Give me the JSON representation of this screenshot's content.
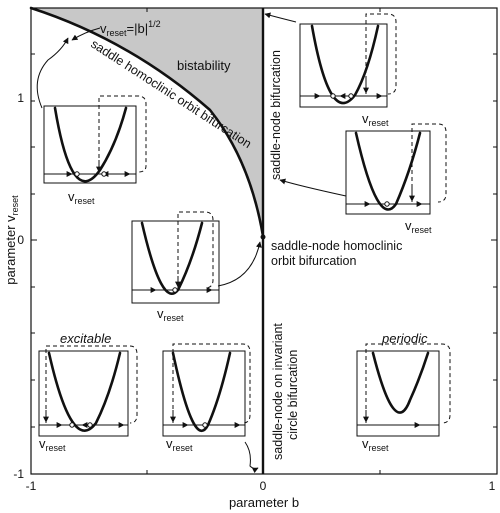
{
  "axes": {
    "xlabel": "parameter b",
    "ylabel_main": "parameter v",
    "ylabel_sub": "reset",
    "x_ticks": [
      "-1",
      "0",
      "1"
    ],
    "y_ticks": [
      "1",
      "0",
      "-1"
    ]
  },
  "regions": {
    "bistability": "bistability",
    "excitable": "excitable",
    "periodic": "periodic"
  },
  "curve_label": {
    "v": "v",
    "sub": "reset",
    "eq": "=|b|",
    "sup": "1/2"
  },
  "bifurcations": {
    "saddle_homoclinic": "saddle homoclinic orbit bifurcation",
    "saddle_node_top": "saddle-node bifurcation",
    "sn_homoclinic_line1": "saddle-node homoclinic",
    "sn_homoclinic_line2": "orbit bifurcation",
    "sn_invariant_line1": "saddle-node on invariant",
    "sn_invariant_line2": "circle bifurcation"
  },
  "inset_label": {
    "v": "v",
    "sub": "reset"
  }
}
